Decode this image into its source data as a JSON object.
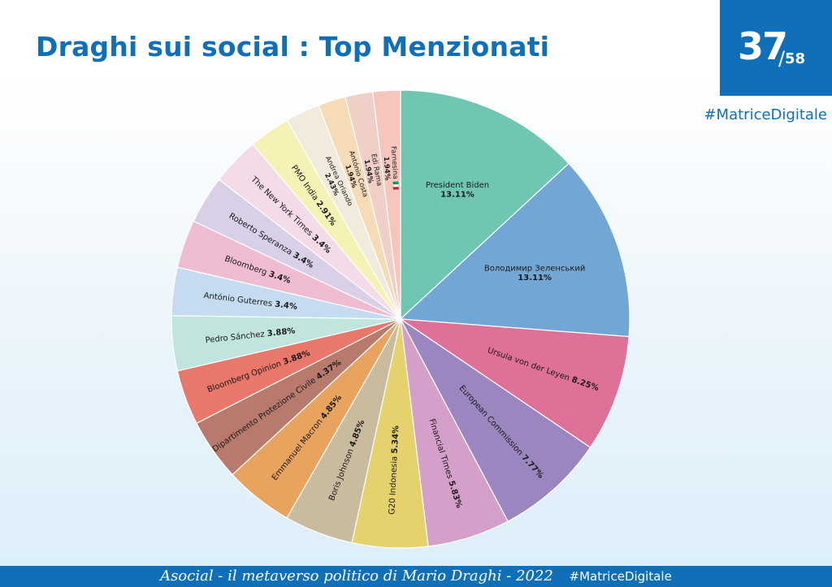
{
  "header": {
    "title": "Draghi sui social : Top Menzionati",
    "page_number": "37",
    "page_total": "58",
    "hashtag": "#MatriceDigitale"
  },
  "footer": {
    "text": "Asocial - il metaverso politico di Mario Draghi - 2022",
    "hashtag": "#MatriceDigitale"
  },
  "chart_data": {
    "type": "pie",
    "title": "",
    "unit": "%",
    "slices": [
      {
        "label": "President Biden",
        "value": 13.11,
        "value_label": "13.11%",
        "color": "#6fc7b3"
      },
      {
        "label": "Володимир Зеленський",
        "value": 13.11,
        "value_label": "13.11%",
        "color": "#72a6d5"
      },
      {
        "label": "Ursula von der Leyen",
        "value": 8.25,
        "value_label": "8.25%",
        "color": "#df7098"
      },
      {
        "label": "European Commission",
        "value": 7.77,
        "value_label": "7.77%",
        "color": "#9c86c0"
      },
      {
        "label": "Financial Times",
        "value": 5.83,
        "value_label": "5.83%",
        "color": "#d49fc8"
      },
      {
        "label": "G20 Indonesia",
        "value": 5.34,
        "value_label": "5.34%",
        "color": "#e5d26d"
      },
      {
        "label": "Boris Johnson",
        "value": 4.85,
        "value_label": "4.85%",
        "color": "#c9bb9d"
      },
      {
        "label": "Emmanuel Macron",
        "value": 4.85,
        "value_label": "4.85%",
        "color": "#e8a35e"
      },
      {
        "label": "Dipartimento Protezione Civile",
        "value": 4.37,
        "value_label": "4.37%",
        "color": "#b87a6c"
      },
      {
        "label": "Bloomberg Opinion",
        "value": 3.88,
        "value_label": "3.88%",
        "color": "#e9776a"
      },
      {
        "label": "Pedro Sánchez",
        "value": 3.88,
        "value_label": "3.88%",
        "color": "#bfe5de"
      },
      {
        "label": "António Guterres",
        "value": 3.4,
        "value_label": "3.4%",
        "color": "#c5dcf0"
      },
      {
        "label": "Bloomberg",
        "value": 3.4,
        "value_label": "3.4%",
        "color": "#f0bcd2"
      },
      {
        "label": "Roberto Speranza",
        "value": 3.4,
        "value_label": "3.4%",
        "color": "#d9cfe7"
      },
      {
        "label": "The New York Times",
        "value": 3.4,
        "value_label": "3.4%",
        "color": "#f4dbe8"
      },
      {
        "label": "PMO India",
        "value": 2.91,
        "value_label": "2.91%",
        "color": "#f4f2b5"
      },
      {
        "label": "Andrea Orlando",
        "value": 2.43,
        "value_label": "2.43%",
        "color": "#f0ebdc"
      },
      {
        "label": "António Costa",
        "value": 1.94,
        "value_label": "1.94%",
        "color": "#f6dcb6"
      },
      {
        "label": "Edi Rama",
        "value": 1.94,
        "value_label": "1.94%",
        "color": "#efcfc6"
      },
      {
        "label": "Farnesina 🇮🇹",
        "value": 1.94,
        "value_label": "1.94%",
        "color": "#f6c6bd"
      }
    ]
  }
}
